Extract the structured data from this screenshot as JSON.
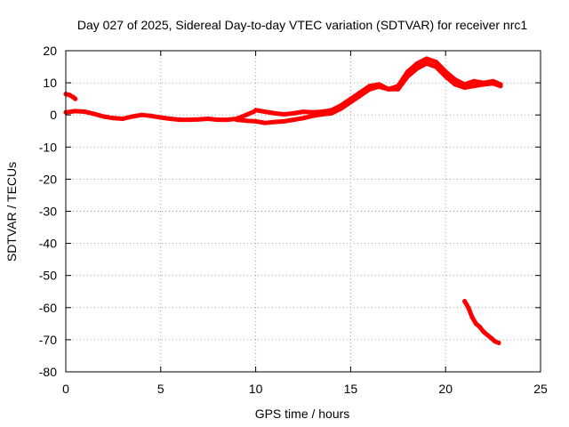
{
  "chart_data": {
    "type": "scatter",
    "title": "Day 027 of 2025, Sidereal Day-to-day VTEC variation (SDTVAR) for receiver nrc1",
    "xlabel": "GPS time / hours",
    "ylabel": "SDTVAR / TECUs",
    "xlim": [
      0,
      25
    ],
    "ylim": [
      -80,
      20
    ],
    "xticks": [
      0,
      5,
      10,
      15,
      20,
      25
    ],
    "yticks": [
      20,
      10,
      0,
      -10,
      -20,
      -30,
      -40,
      -50,
      -60,
      -70,
      -80
    ],
    "grid": true,
    "grid_style": "dotted",
    "series_color": "#ff0000",
    "series": [
      {
        "name": "segment-early",
        "points": [
          [
            0.0,
            6.5
          ],
          [
            0.2,
            6.2
          ],
          [
            0.4,
            5.5
          ],
          [
            0.5,
            5.0
          ]
        ]
      },
      {
        "name": "segment-main-a",
        "points": [
          [
            0.0,
            0.8
          ],
          [
            0.5,
            1.2
          ],
          [
            1.0,
            1.0
          ],
          [
            1.5,
            0.3
          ],
          [
            2.0,
            -0.5
          ],
          [
            2.5,
            -1.0
          ],
          [
            3.0,
            -1.2
          ],
          [
            3.5,
            -0.5
          ],
          [
            4.0,
            0.0
          ],
          [
            4.5,
            -0.3
          ],
          [
            5.0,
            -0.8
          ],
          [
            5.5,
            -1.2
          ],
          [
            6.0,
            -1.5
          ],
          [
            6.5,
            -1.5
          ],
          [
            7.0,
            -1.4
          ],
          [
            7.5,
            -1.2
          ],
          [
            8.0,
            -1.5
          ],
          [
            8.5,
            -1.5
          ],
          [
            9.0,
            -1.2
          ],
          [
            9.5,
            0.0
          ],
          [
            9.9,
            1.0
          ]
        ]
      },
      {
        "name": "segment-main-b",
        "points": [
          [
            9.0,
            -1.5
          ],
          [
            9.5,
            -1.8
          ],
          [
            10.0,
            -2.0
          ],
          [
            10.5,
            -2.5
          ],
          [
            11.0,
            -2.2
          ],
          [
            11.5,
            -2.0
          ],
          [
            12.0,
            -1.5
          ],
          [
            12.5,
            -1.0
          ],
          [
            13.0,
            -0.3
          ],
          [
            13.5,
            0.2
          ],
          [
            14.0,
            0.5
          ],
          [
            14.5,
            2.0
          ],
          [
            15.0,
            4.0
          ],
          [
            15.5,
            6.0
          ],
          [
            16.0,
            8.0
          ],
          [
            16.5,
            8.8
          ],
          [
            17.0,
            8.0
          ],
          [
            17.5,
            8.0
          ],
          [
            18.0,
            12.0
          ],
          [
            18.5,
            14.5
          ],
          [
            19.0,
            16.0
          ],
          [
            19.5,
            15.0
          ],
          [
            20.0,
            12.0
          ],
          [
            20.5,
            9.5
          ],
          [
            21.0,
            8.5
          ],
          [
            21.5,
            9.0
          ],
          [
            22.0,
            9.5
          ],
          [
            22.5,
            9.8
          ],
          [
            22.9,
            9.0
          ]
        ]
      },
      {
        "name": "segment-upper",
        "points": [
          [
            10.0,
            1.5
          ],
          [
            10.5,
            1.0
          ],
          [
            11.0,
            0.5
          ],
          [
            11.5,
            0.2
          ],
          [
            12.0,
            0.5
          ],
          [
            12.5,
            1.0
          ],
          [
            13.0,
            0.8
          ],
          [
            13.5,
            1.0
          ],
          [
            14.0,
            1.5
          ],
          [
            14.5,
            3.0
          ],
          [
            15.0,
            5.0
          ],
          [
            15.5,
            7.0
          ],
          [
            16.0,
            9.0
          ],
          [
            16.5,
            9.5
          ],
          [
            17.0,
            8.0
          ],
          [
            17.5,
            9.0
          ],
          [
            18.0,
            13.5
          ],
          [
            18.5,
            16.0
          ],
          [
            19.0,
            17.5
          ],
          [
            19.5,
            16.5
          ],
          [
            20.0,
            13.5
          ],
          [
            20.5,
            11.0
          ],
          [
            21.0,
            9.5
          ],
          [
            21.5,
            10.5
          ],
          [
            22.0,
            10.0
          ],
          [
            22.5,
            10.5
          ],
          [
            22.9,
            9.5
          ]
        ]
      },
      {
        "name": "segment-drop",
        "points": [
          [
            21.0,
            -58.0
          ],
          [
            21.2,
            -60.0
          ],
          [
            21.4,
            -63.0
          ],
          [
            21.6,
            -65.0
          ],
          [
            21.8,
            -66.0
          ],
          [
            22.0,
            -67.5
          ],
          [
            22.2,
            -68.5
          ],
          [
            22.4,
            -69.5
          ],
          [
            22.6,
            -70.5
          ],
          [
            22.8,
            -71.0
          ]
        ]
      }
    ]
  }
}
